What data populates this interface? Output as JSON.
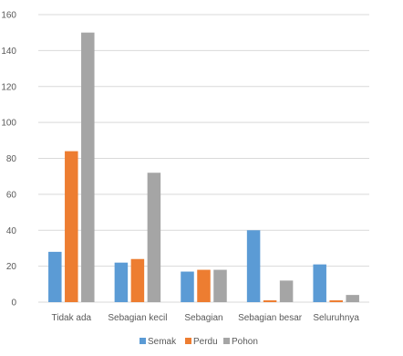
{
  "chart_data": {
    "type": "bar",
    "categories": [
      "Tidak ada",
      "Sebagian kecil",
      "Sebagian",
      "Sebagian besar",
      "Seluruhnya"
    ],
    "series": [
      {
        "name": "Semak",
        "color": "#5B9BD5",
        "values": [
          28,
          22,
          17,
          40,
          21
        ]
      },
      {
        "name": "Perdu",
        "color": "#ED7D31",
        "values": [
          84,
          24,
          18,
          1,
          1
        ]
      },
      {
        "name": "Pohon",
        "color": "#A5A5A5",
        "values": [
          150,
          72,
          18,
          12,
          4
        ]
      }
    ],
    "title": "",
    "xlabel": "",
    "ylabel": "",
    "ylim": [
      0,
      160
    ],
    "yticks": [
      0,
      20,
      40,
      60,
      80,
      100,
      120,
      140,
      160
    ],
    "grid": true,
    "legend_position": "bottom"
  }
}
